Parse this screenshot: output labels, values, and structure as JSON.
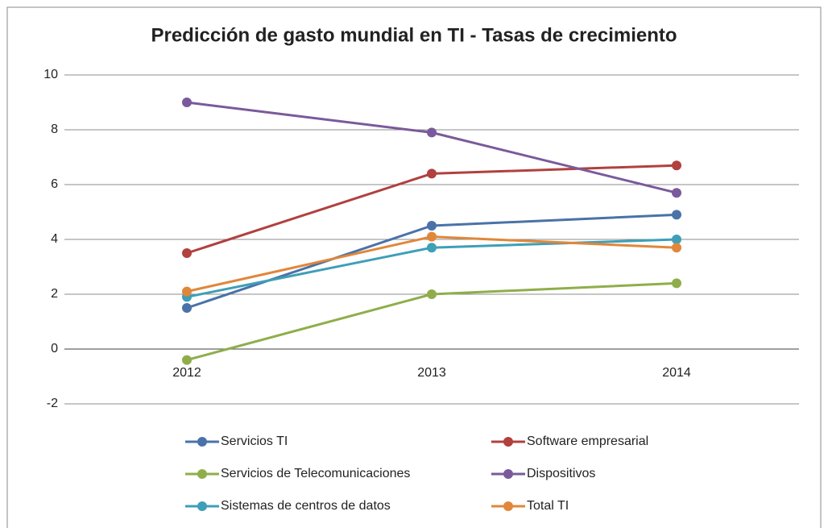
{
  "chart_data": {
    "type": "line",
    "title": "Predicción de gasto mundial en TI - Tasas de crecimiento",
    "categories": [
      "2012",
      "2013",
      "2014"
    ],
    "series": [
      {
        "name": "Servicios TI",
        "color": "#4a72a8",
        "values": [
          1.5,
          4.5,
          4.9
        ]
      },
      {
        "name": "Software empresarial",
        "color": "#b0413e",
        "values": [
          3.5,
          6.4,
          6.7
        ]
      },
      {
        "name": "Servicios de Telecomunicaciones",
        "color": "#8fae4a",
        "values": [
          -0.4,
          2.0,
          2.4
        ]
      },
      {
        "name": "Dispositivos",
        "color": "#7a5a9a",
        "values": [
          9.0,
          7.9,
          5.7
        ]
      },
      {
        "name": "Sistemas de centros de datos",
        "color": "#3e9fb8",
        "values": [
          1.9,
          3.7,
          4.0
        ]
      },
      {
        "name": "Total TI",
        "color": "#e0873a",
        "values": [
          2.1,
          4.1,
          3.7
        ]
      }
    ],
    "ylim": [
      -2,
      10
    ],
    "yticks": [
      -2,
      0,
      2,
      4,
      6,
      8,
      10
    ],
    "grid": true,
    "legend": "bottom"
  }
}
